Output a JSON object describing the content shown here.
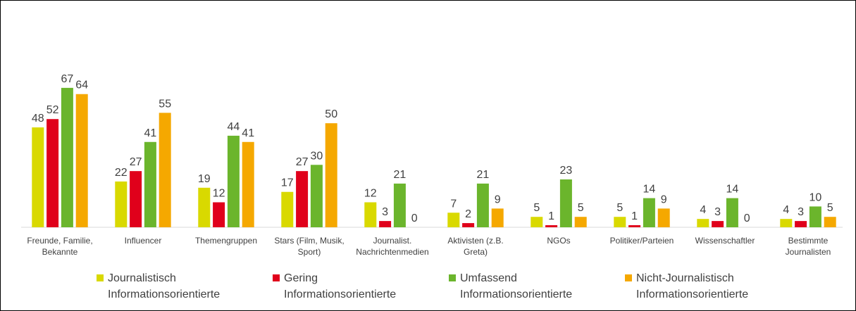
{
  "chart_data": {
    "type": "bar",
    "categories": [
      "Freunde, Familie, Bekannte",
      "Influencer",
      "Themengruppen",
      "Stars (Film, Musik, Sport)",
      "Journalist. Nachrichtenmedien",
      "Aktivisten (z.B. Greta)",
      "NGOs",
      "Politiker/Parteien",
      "Wissenschaftler",
      "Bestimmte Journalisten"
    ],
    "series": [
      {
        "name": "Journalistisch Informationsorientierte",
        "color": "#d9d900",
        "values": [
          48,
          22,
          19,
          17,
          12,
          7,
          5,
          5,
          4,
          4
        ]
      },
      {
        "name": "Gering Informationsorientierte",
        "color": "#e0001b",
        "values": [
          52,
          27,
          12,
          27,
          3,
          2,
          1,
          1,
          3,
          3
        ]
      },
      {
        "name": "Umfassend Informationsorientierte",
        "color": "#6bb52c",
        "values": [
          67,
          41,
          44,
          30,
          21,
          21,
          23,
          14,
          14,
          10
        ]
      },
      {
        "name": "Nicht-Journalistisch Informationsorientierte",
        "color": "#f5a800",
        "values": [
          64,
          55,
          41,
          50,
          0,
          9,
          5,
          9,
          0,
          5
        ]
      }
    ],
    "ylim": [
      0,
      70
    ],
    "legend": "bottom"
  }
}
